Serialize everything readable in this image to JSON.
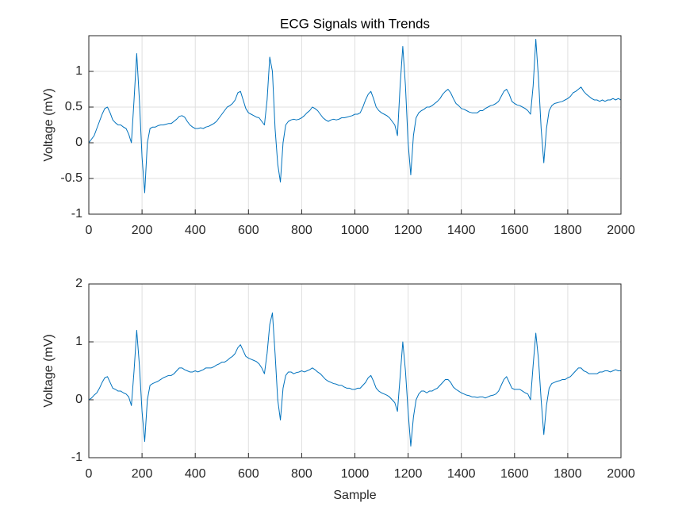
{
  "chart_data": [
    {
      "type": "line",
      "title": "ECG Signals with Trends",
      "ylabel": "Voltage (mV)",
      "color": "#0072bd",
      "grid": true,
      "x": [
        0,
        10,
        20,
        30,
        40,
        50,
        60,
        70,
        80,
        90,
        100,
        110,
        120,
        130,
        140,
        150,
        160,
        170,
        180,
        190,
        200,
        210,
        220,
        230,
        240,
        250,
        260,
        270,
        280,
        290,
        300,
        310,
        320,
        330,
        340,
        350,
        360,
        370,
        380,
        390,
        400,
        410,
        420,
        430,
        440,
        450,
        460,
        470,
        480,
        490,
        500,
        510,
        520,
        530,
        540,
        550,
        560,
        570,
        580,
        590,
        600,
        610,
        620,
        630,
        640,
        650,
        660,
        670,
        680,
        690,
        700,
        710,
        720,
        730,
        740,
        750,
        760,
        770,
        780,
        790,
        800,
        810,
        820,
        830,
        840,
        850,
        860,
        870,
        880,
        890,
        900,
        910,
        920,
        930,
        940,
        950,
        960,
        970,
        980,
        990,
        1000,
        1010,
        1020,
        1030,
        1040,
        1050,
        1060,
        1070,
        1080,
        1090,
        1100,
        1110,
        1120,
        1130,
        1140,
        1150,
        1160,
        1170,
        1180,
        1190,
        1200,
        1210,
        1220,
        1230,
        1240,
        1250,
        1260,
        1270,
        1280,
        1290,
        1300,
        1310,
        1320,
        1330,
        1340,
        1350,
        1360,
        1370,
        1380,
        1390,
        1400,
        1410,
        1420,
        1430,
        1440,
        1450,
        1460,
        1470,
        1480,
        1490,
        1500,
        1510,
        1520,
        1530,
        1540,
        1550,
        1560,
        1570,
        1580,
        1590,
        1600,
        1610,
        1620,
        1630,
        1640,
        1650,
        1660,
        1670,
        1680,
        1690,
        1700,
        1710,
        1720,
        1730,
        1740,
        1750,
        1760,
        1770,
        1780,
        1790,
        1800,
        1810,
        1820,
        1830,
        1840,
        1850,
        1860,
        1870,
        1880,
        1890,
        1900,
        1910,
        1920,
        1930,
        1940,
        1950,
        1960,
        1970,
        1980,
        1990,
        2000
      ],
      "values": [
        0.0,
        0.05,
        0.1,
        0.2,
        0.3,
        0.4,
        0.48,
        0.5,
        0.42,
        0.32,
        0.28,
        0.25,
        0.25,
        0.22,
        0.2,
        0.12,
        0.0,
        0.6,
        1.25,
        0.6,
        -0.2,
        -0.7,
        0.0,
        0.2,
        0.22,
        0.22,
        0.24,
        0.25,
        0.25,
        0.26,
        0.27,
        0.27,
        0.3,
        0.33,
        0.37,
        0.38,
        0.36,
        0.3,
        0.25,
        0.22,
        0.2,
        0.2,
        0.21,
        0.2,
        0.22,
        0.23,
        0.25,
        0.27,
        0.3,
        0.35,
        0.4,
        0.45,
        0.5,
        0.52,
        0.55,
        0.6,
        0.7,
        0.72,
        0.6,
        0.48,
        0.42,
        0.4,
        0.38,
        0.36,
        0.35,
        0.3,
        0.25,
        0.6,
        1.2,
        1.0,
        0.2,
        -0.3,
        -0.55,
        0.0,
        0.25,
        0.3,
        0.32,
        0.33,
        0.32,
        0.33,
        0.35,
        0.38,
        0.42,
        0.45,
        0.5,
        0.48,
        0.45,
        0.4,
        0.35,
        0.32,
        0.3,
        0.32,
        0.33,
        0.32,
        0.33,
        0.35,
        0.35,
        0.36,
        0.37,
        0.38,
        0.4,
        0.4,
        0.42,
        0.5,
        0.6,
        0.68,
        0.72,
        0.62,
        0.5,
        0.45,
        0.42,
        0.4,
        0.38,
        0.35,
        0.3,
        0.25,
        0.1,
        0.8,
        1.35,
        0.8,
        0.0,
        -0.45,
        0.1,
        0.35,
        0.42,
        0.45,
        0.47,
        0.5,
        0.5,
        0.52,
        0.55,
        0.58,
        0.62,
        0.68,
        0.72,
        0.75,
        0.7,
        0.62,
        0.55,
        0.52,
        0.48,
        0.47,
        0.45,
        0.43,
        0.42,
        0.42,
        0.42,
        0.45,
        0.45,
        0.48,
        0.5,
        0.52,
        0.53,
        0.55,
        0.58,
        0.65,
        0.72,
        0.75,
        0.68,
        0.58,
        0.55,
        0.53,
        0.52,
        0.5,
        0.48,
        0.45,
        0.4,
        0.8,
        1.45,
        0.9,
        0.2,
        -0.28,
        0.2,
        0.45,
        0.52,
        0.55,
        0.56,
        0.57,
        0.58,
        0.6,
        0.62,
        0.65,
        0.7,
        0.72,
        0.75,
        0.78,
        0.72,
        0.68,
        0.65,
        0.62,
        0.6,
        0.6,
        0.58,
        0.6,
        0.58,
        0.6,
        0.6,
        0.62,
        0.6,
        0.62,
        0.6
      ],
      "xlim": [
        0,
        2000
      ],
      "xticks": [
        0,
        200,
        400,
        600,
        800,
        1000,
        1200,
        1400,
        1600,
        1800,
        2000
      ],
      "ylim": [
        -1,
        1.5
      ],
      "yticks": [
        -1,
        -0.5,
        0,
        0.5,
        1
      ]
    },
    {
      "type": "line",
      "ylabel": "Voltage (mV)",
      "xlabel": "Sample",
      "color": "#0072bd",
      "grid": true,
      "x": [
        0,
        10,
        20,
        30,
        40,
        50,
        60,
        70,
        80,
        90,
        100,
        110,
        120,
        130,
        140,
        150,
        160,
        170,
        180,
        190,
        200,
        210,
        220,
        230,
        240,
        250,
        260,
        270,
        280,
        290,
        300,
        310,
        320,
        330,
        340,
        350,
        360,
        370,
        380,
        390,
        400,
        410,
        420,
        430,
        440,
        450,
        460,
        470,
        480,
        490,
        500,
        510,
        520,
        530,
        540,
        550,
        560,
        570,
        580,
        590,
        600,
        610,
        620,
        630,
        640,
        650,
        660,
        670,
        680,
        690,
        700,
        710,
        720,
        730,
        740,
        750,
        760,
        770,
        780,
        790,
        800,
        810,
        820,
        830,
        840,
        850,
        860,
        870,
        880,
        890,
        900,
        910,
        920,
        930,
        940,
        950,
        960,
        970,
        980,
        990,
        1000,
        1010,
        1020,
        1030,
        1040,
        1050,
        1060,
        1070,
        1080,
        1090,
        1100,
        1110,
        1120,
        1130,
        1140,
        1150,
        1160,
        1170,
        1180,
        1190,
        1200,
        1210,
        1220,
        1230,
        1240,
        1250,
        1260,
        1270,
        1280,
        1290,
        1300,
        1310,
        1320,
        1330,
        1340,
        1350,
        1360,
        1370,
        1380,
        1390,
        1400,
        1410,
        1420,
        1430,
        1440,
        1450,
        1460,
        1470,
        1480,
        1490,
        1500,
        1510,
        1520,
        1530,
        1540,
        1550,
        1560,
        1570,
        1580,
        1590,
        1600,
        1610,
        1620,
        1630,
        1640,
        1650,
        1660,
        1670,
        1680,
        1690,
        1700,
        1710,
        1720,
        1730,
        1740,
        1750,
        1760,
        1770,
        1780,
        1790,
        1800,
        1810,
        1820,
        1830,
        1840,
        1850,
        1860,
        1870,
        1880,
        1890,
        1900,
        1910,
        1920,
        1930,
        1940,
        1950,
        1960,
        1970,
        1980,
        1990,
        2000
      ],
      "values": [
        0.0,
        0.03,
        0.08,
        0.12,
        0.2,
        0.3,
        0.38,
        0.4,
        0.3,
        0.2,
        0.18,
        0.15,
        0.15,
        0.12,
        0.1,
        0.05,
        -0.1,
        0.5,
        1.2,
        0.6,
        -0.2,
        -0.72,
        0.0,
        0.25,
        0.28,
        0.3,
        0.32,
        0.35,
        0.38,
        0.4,
        0.42,
        0.42,
        0.45,
        0.5,
        0.55,
        0.55,
        0.52,
        0.5,
        0.48,
        0.48,
        0.5,
        0.48,
        0.5,
        0.52,
        0.55,
        0.55,
        0.55,
        0.57,
        0.6,
        0.62,
        0.65,
        0.65,
        0.68,
        0.72,
        0.75,
        0.8,
        0.9,
        0.95,
        0.85,
        0.75,
        0.72,
        0.7,
        0.68,
        0.66,
        0.62,
        0.55,
        0.45,
        0.8,
        1.3,
        1.5,
        0.8,
        0.0,
        -0.35,
        0.2,
        0.42,
        0.48,
        0.48,
        0.45,
        0.47,
        0.48,
        0.5,
        0.48,
        0.5,
        0.52,
        0.55,
        0.52,
        0.48,
        0.45,
        0.4,
        0.35,
        0.32,
        0.3,
        0.28,
        0.27,
        0.25,
        0.25,
        0.22,
        0.2,
        0.2,
        0.18,
        0.18,
        0.2,
        0.2,
        0.25,
        0.3,
        0.38,
        0.42,
        0.32,
        0.2,
        0.15,
        0.12,
        0.1,
        0.08,
        0.05,
        0.0,
        -0.05,
        -0.2,
        0.4,
        1.0,
        0.5,
        -0.2,
        -0.8,
        -0.3,
        0.0,
        0.1,
        0.15,
        0.15,
        0.12,
        0.15,
        0.15,
        0.18,
        0.2,
        0.25,
        0.3,
        0.35,
        0.35,
        0.3,
        0.22,
        0.18,
        0.15,
        0.12,
        0.1,
        0.08,
        0.07,
        0.05,
        0.05,
        0.04,
        0.05,
        0.05,
        0.03,
        0.05,
        0.07,
        0.08,
        0.1,
        0.15,
        0.25,
        0.35,
        0.4,
        0.3,
        0.2,
        0.18,
        0.18,
        0.18,
        0.15,
        0.12,
        0.1,
        0.0,
        0.6,
        1.15,
        0.7,
        0.0,
        -0.6,
        -0.1,
        0.2,
        0.28,
        0.3,
        0.32,
        0.33,
        0.35,
        0.35,
        0.38,
        0.4,
        0.45,
        0.5,
        0.55,
        0.55,
        0.5,
        0.48,
        0.45,
        0.45,
        0.45,
        0.45,
        0.48,
        0.48,
        0.5,
        0.5,
        0.48,
        0.5,
        0.52,
        0.5,
        0.5
      ],
      "xlim": [
        0,
        2000
      ],
      "xticks": [
        0,
        200,
        400,
        600,
        800,
        1000,
        1200,
        1400,
        1600,
        1800,
        2000
      ],
      "ylim": [
        -1,
        2
      ],
      "yticks": [
        -1,
        0,
        1,
        2
      ]
    }
  ]
}
